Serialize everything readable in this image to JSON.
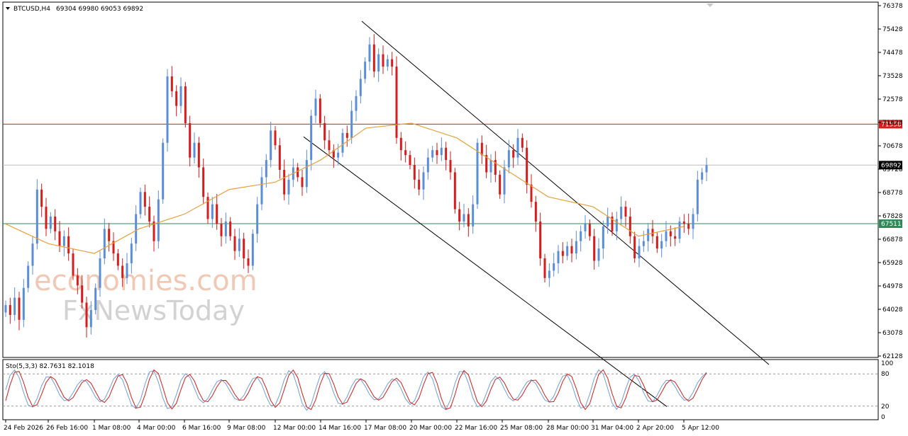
{
  "header": {
    "symbol": "BTCUSD,H4",
    "ohlc": "69304 69980 69053 69892",
    "stochastic": "Sto(5,3,3) 82.7631 82.1018"
  },
  "watermark": {
    "brand": "economies.com",
    "subbrand": "FxNewsToday"
  },
  "colors": {
    "bull": "#5b8ed9",
    "bear": "#d81b1b",
    "ma": "#e6a23c",
    "resistance": "#d81b1b",
    "support": "#2e8b57",
    "channel": "#000000",
    "stoch_main": "#6fa0d8",
    "stoch_signal": "#d81b1b"
  },
  "chart_data": {
    "type": "candlestick",
    "symbol": "BTCUSD",
    "timeframe": "H4",
    "last_price": 69892,
    "ylim": [
      62128,
      76378
    ],
    "price_ticks": [
      76378,
      75428,
      74478,
      73528,
      72578,
      71628,
      70678,
      69728,
      68778,
      67828,
      66878,
      65928,
      64978,
      64028,
      63078,
      62128
    ],
    "x_ticks": [
      "24 Feb 2026",
      "26 Feb 16:00",
      "1 Mar 08:00",
      "4 Mar 00:00",
      "6 Mar 16:00",
      "9 Mar 08:00",
      "12 Mar 00:00",
      "14 Mar 16:00",
      "17 Mar 08:00",
      "20 Mar 00:00",
      "22 Mar 16:00",
      "25 Mar 08:00",
      "28 Mar 00:00",
      "31 Mar 04:00",
      "2 Apr 20:00",
      "5 Apr 12:00"
    ],
    "horizontal_lines": [
      {
        "price": 71558,
        "label": "71558",
        "role": "resistance"
      },
      {
        "price": 67511,
        "label": "67511",
        "role": "support"
      },
      {
        "price": 69892,
        "label": "69892",
        "role": "current"
      }
    ],
    "closes": [
      64200,
      63800,
      64500,
      63600,
      64900,
      65800,
      66700,
      68900,
      68200,
      67300,
      67800,
      67200,
      66600,
      67000,
      66300,
      65400,
      65000,
      64300,
      63300,
      64000,
      64900,
      66100,
      67300,
      66800,
      66300,
      65800,
      65300,
      65900,
      66700,
      67900,
      68800,
      68200,
      67600,
      66800,
      68500,
      70800,
      73500,
      72900,
      72300,
      73100,
      71600,
      70200,
      70800,
      69800,
      68600,
      67700,
      68300,
      67500,
      67000,
      67600,
      67000,
      66400,
      66900,
      66100,
      65800,
      67100,
      68300,
      69400,
      70100,
      71300,
      70700,
      69700,
      68700,
      69300,
      69800,
      69400,
      69000,
      70100,
      71900,
      72600,
      71600,
      70900,
      70500,
      70200,
      70400,
      71200,
      71000,
      72100,
      72700,
      73400,
      74100,
      74800,
      73700,
      74400,
      73900,
      74200,
      73900,
      71000,
      70500,
      70300,
      69900,
      69300,
      68900,
      69600,
      70200,
      70500,
      70300,
      70600,
      70100,
      69600,
      68100,
      67600,
      67900,
      67400,
      68300,
      70800,
      70300,
      69600,
      70100,
      69500,
      68700,
      69800,
      70500,
      70200,
      71000,
      70600,
      69100,
      68400,
      67600,
      66100,
      65300,
      65600,
      65900,
      66400,
      66200,
      66600,
      66300,
      66800,
      67200,
      67500,
      67000,
      66000,
      66500,
      67400,
      67800,
      67200,
      67700,
      68200,
      67800,
      67000,
      66100,
      66600,
      66800,
      67300,
      67000,
      66500,
      66800,
      67200,
      67000,
      66900,
      67600,
      67500,
      67300,
      67900,
      69300,
      69600,
      69892
    ],
    "moving_average": [
      {
        "x": "24 Feb 2026",
        "y": 67500
      },
      {
        "x": "26 Feb 16:00",
        "y": 66700
      },
      {
        "x": "1 Mar 08:00",
        "y": 66300
      },
      {
        "x": "4 Mar 00:00",
        "y": 67300
      },
      {
        "x": "6 Mar 16:00",
        "y": 67900
      },
      {
        "x": "9 Mar 08:00",
        "y": 68900
      },
      {
        "x": "12 Mar 00:00",
        "y": 69200
      },
      {
        "x": "14 Mar 16:00",
        "y": 70100
      },
      {
        "x": "17 Mar 08:00",
        "y": 71400
      },
      {
        "x": "20 Mar 00:00",
        "y": 71600
      },
      {
        "x": "22 Mar 16:00",
        "y": 71000
      },
      {
        "x": "25 Mar 08:00",
        "y": 69800
      },
      {
        "x": "28 Mar 00:00",
        "y": 68600
      },
      {
        "x": "31 Mar 04:00",
        "y": 68200
      },
      {
        "x": "2 Apr 20:00",
        "y": 67000
      },
      {
        "x": "5 Apr 12:00",
        "y": 67400
      }
    ],
    "trendlines": [
      {
        "from": {
          "x": "17 Mar 08:00",
          "y": 75600
        },
        "to": {
          "x": "5 Apr 12:00",
          "y": 64700
        },
        "role": "upper channel"
      },
      {
        "from": {
          "x": "12 Mar 00:00",
          "y": 71900
        },
        "to": {
          "x": "31 Mar 04:00",
          "y": 62300
        },
        "role": "lower channel"
      }
    ],
    "indicator": {
      "name": "Sto(5,3,3)",
      "main": 82.7631,
      "signal": 82.1018,
      "ylim": [
        0,
        100
      ],
      "levels": [
        80,
        20
      ],
      "tick_labels": [
        "100",
        "80",
        "20",
        "0"
      ]
    },
    "grid": false
  }
}
